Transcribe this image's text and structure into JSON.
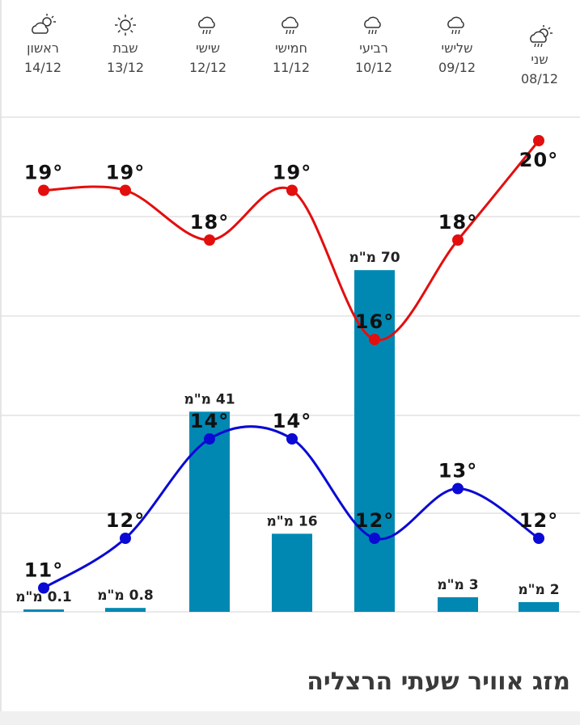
{
  "days": [
    {
      "name": "שני",
      "date": "08/12",
      "icon": "partly-cloudy-rain-icon"
    },
    {
      "name": "שלישי",
      "date": "09/12",
      "icon": "rain-cloud-icon"
    },
    {
      "name": "רביעי",
      "date": "10/12",
      "icon": "rain-cloud-icon"
    },
    {
      "name": "חמישי",
      "date": "11/12",
      "icon": "rain-cloud-icon"
    },
    {
      "name": "שישי",
      "date": "12/12",
      "icon": "rain-cloud-icon"
    },
    {
      "name": "שבת",
      "date": "13/12",
      "icon": "sun-icon"
    },
    {
      "name": "ראשון",
      "date": "14/12",
      "icon": "partly-cloudy-icon"
    }
  ],
  "chart_data": {
    "type": "line",
    "categories": [
      "08/12",
      "09/12",
      "10/12",
      "11/12",
      "12/12",
      "13/12",
      "14/12"
    ],
    "series": [
      {
        "values": [
          20,
          18,
          16,
          19,
          18,
          19,
          19
        ],
        "color": "#e30e0e"
      },
      {
        "values": [
          12,
          13,
          12,
          14,
          14,
          12,
          11
        ],
        "color": "#0a0ad4"
      }
    ],
    "bars": {
      "values": [
        2,
        3,
        70,
        16,
        41,
        0.8,
        0.1
      ],
      "labels": [
        "2 מ\"מ",
        "3 מ\"מ",
        "70 מ\"מ",
        "16 מ\"מ",
        "41 מ\"מ",
        "0.8 מ\"מ",
        "0.1 מ\"מ"
      ],
      "color": "#0088b3"
    },
    "temp_labels_high": [
      "20°",
      "18°",
      "16°",
      "19°",
      "18°",
      "19°",
      "19°"
    ],
    "temp_labels_low": [
      "12°",
      "13°",
      "12°",
      "14°",
      "14°",
      "12°",
      "11°"
    ],
    "grid": true
  },
  "footer": {
    "title": "מזג אוויר שעתי הרצליה"
  }
}
